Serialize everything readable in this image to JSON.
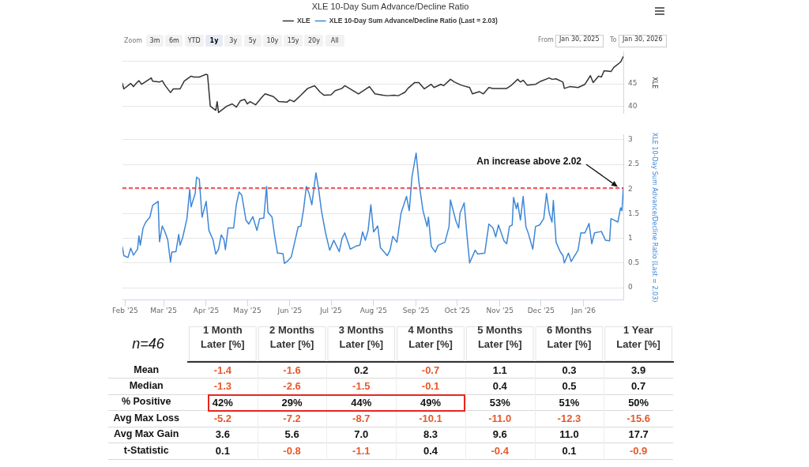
{
  "chart_data": [
    {
      "type": "line",
      "title": "XLE 10-Day Sum Advance/Decline Ratio",
      "ylabel": "XLE",
      "legend": "top",
      "grid": "y",
      "marker": "none",
      "line_style": "solid",
      "tick_labels": "y",
      "xlim": [
        "2025-01-30",
        "2026-01-30"
      ],
      "ylim": [
        38.5,
        52
      ],
      "yticks": [
        40,
        45,
        {
          "value": 50,
          "label": null
        }
      ],
      "annotations": [
        "Zoom",
        "3m",
        "6m",
        "YTD",
        "1y",
        "3y",
        "5y",
        "10y",
        "15y",
        "20y",
        "All",
        "From",
        "Jan 30, 2025",
        "To",
        "Jan 30, 2026"
      ],
      "series": [
        {
          "name": "XLE",
          "color": "#333333",
          "x": [
            "2025-01-30",
            "2025-01-31",
            "2025-02-05",
            "2025-02-07",
            "2025-02-09",
            "2025-02-11",
            "2025-02-13",
            "2025-02-20",
            "2025-02-21",
            "2025-02-26",
            "2025-02-28",
            "2025-03-02",
            "2025-03-06",
            "2025-03-08",
            "2025-03-13",
            "2025-03-16",
            "2025-03-21",
            "2025-03-23",
            "2025-03-27",
            "2025-04-01",
            "2025-04-02",
            "2025-04-04",
            "2025-04-08",
            "2025-04-09",
            "2025-04-10",
            "2025-04-16",
            "2025-04-20",
            "2025-04-23",
            "2025-04-26",
            "2025-04-29",
            "2025-05-01",
            "2025-05-03",
            "2025-05-07",
            "2025-05-12",
            "2025-05-14",
            "2025-05-20",
            "2025-05-24",
            "2025-05-30",
            "2025-06-01",
            "2025-06-04",
            "2025-06-09",
            "2025-06-14",
            "2025-06-19",
            "2025-06-23",
            "2025-06-26",
            "2025-07-01",
            "2025-07-04",
            "2025-07-09",
            "2025-07-11",
            "2025-07-16",
            "2025-07-21",
            "2025-07-29",
            "2025-08-02",
            "2025-08-08",
            "2025-08-11",
            "2025-08-16",
            "2025-08-19",
            "2025-08-24",
            "2025-08-26",
            "2025-08-31",
            "2025-09-03",
            "2025-09-07",
            "2025-09-12",
            "2025-09-14",
            "2025-09-19",
            "2025-09-21",
            "2025-09-26",
            "2025-09-29",
            "2025-10-04",
            "2025-10-10",
            "2025-10-12",
            "2025-10-17",
            "2025-10-20",
            "2025-10-24",
            "2025-10-27",
            "2025-11-01",
            "2025-11-06",
            "2025-11-09",
            "2025-11-14",
            "2025-11-16",
            "2025-11-18",
            "2025-11-21",
            "2025-11-27",
            "2025-12-01",
            "2025-12-07",
            "2025-12-09",
            "2025-12-12",
            "2025-12-17",
            "2025-12-18",
            "2025-12-22",
            "2025-12-28",
            "2026-01-02",
            "2026-01-06",
            "2026-01-08",
            "2026-01-12",
            "2026-01-14",
            "2026-01-16",
            "2026-01-21",
            "2026-01-23",
            "2026-01-28",
            "2026-01-30"
          ],
          "values": [
            45.1,
            43.9,
            45.1,
            44.4,
            45.1,
            45.7,
            44.9,
            46.3,
            45.6,
            45.4,
            45.7,
            44.7,
            43.1,
            43.9,
            43.9,
            45.6,
            46.7,
            46.5,
            46.5,
            47.1,
            47.0,
            40.1,
            39.2,
            41.1,
            38.7,
            40.1,
            40.6,
            39.9,
            41.3,
            41.6,
            40.6,
            41.1,
            40.4,
            42.2,
            42.8,
            42.2,
            41.1,
            41.0,
            41.5,
            41.1,
            42.5,
            44.0,
            44.6,
            43.2,
            42.5,
            42.6,
            43.5,
            44.0,
            44.6,
            43.7,
            42.8,
            44.4,
            42.8,
            42.5,
            42.4,
            42.5,
            42.4,
            43.2,
            44.0,
            45.3,
            45.3,
            43.9,
            44.9,
            44.2,
            44.9,
            44.6,
            46.0,
            45.4,
            44.7,
            44.2,
            42.8,
            43.3,
            42.8,
            44.2,
            44.0,
            44.0,
            44.0,
            44.6,
            46.0,
            45.4,
            45.8,
            44.7,
            44.9,
            45.6,
            46.3,
            46.0,
            46.1,
            45.4,
            44.0,
            44.4,
            44.2,
            44.9,
            46.8,
            45.3,
            46.7,
            46.5,
            47.9,
            47.7,
            48.6,
            49.8,
            51.0
          ]
        }
      ]
    },
    {
      "type": "line",
      "ylabel": "XLE 10-Day Sum Advance/Decline Ratio (Last = 2.03)",
      "legend": "top",
      "grid": "y",
      "marker": "none",
      "line_style": "solid",
      "xlim": [
        "2025-01-30",
        "2026-01-30"
      ],
      "xticks": [
        {
          "value": "2025-02-01",
          "label": "Feb '25"
        },
        {
          "value": "2025-03-01",
          "label": "Mar '25"
        },
        {
          "value": "2025-04-01",
          "label": "Apr '25"
        },
        {
          "value": "2025-05-01",
          "label": "May '25"
        },
        {
          "value": "2025-06-01",
          "label": "Jun '25"
        },
        {
          "value": "2025-07-01",
          "label": "Jul '25"
        },
        {
          "value": "2025-08-01",
          "label": "Aug '25"
        },
        {
          "value": "2025-09-01",
          "label": "Sep '25"
        },
        {
          "value": "2025-10-01",
          "label": "Oct '25"
        },
        {
          "value": "2025-11-01",
          "label": "Nov '25"
        },
        {
          "value": "2025-12-01",
          "label": "Dec '25"
        },
        {
          "value": "2026-01-01",
          "label": "Jan '26"
        }
      ],
      "ylim": [
        -0.25,
        3.1
      ],
      "yticks": [
        0,
        0.5,
        1,
        1.5,
        2,
        2.5,
        3
      ],
      "ref_lines": [
        {
          "axis": "y",
          "value": 2.02,
          "color": "#e8262b",
          "line_style": "dashed"
        }
      ],
      "annotations": [
        {
          "text": "An increase above 2.02",
          "x": "2026-01-26",
          "y": 2.02
        }
      ],
      "series": [
        {
          "name": "XLE 10-Day Sum Advance/Decline Ratio (Last = 2.03)",
          "color": "#3d87d8",
          "x": [
            "2025-01-30",
            "2025-01-31",
            "2025-02-03",
            "2025-02-05",
            "2025-02-07",
            "2025-02-10",
            "2025-02-11",
            "2025-02-12",
            "2025-02-14",
            "2025-02-16",
            "2025-02-19",
            "2025-02-21",
            "2025-02-23",
            "2025-02-25",
            "2025-02-26",
            "2025-02-28",
            "2025-03-02",
            "2025-03-04",
            "2025-03-06",
            "2025-03-07",
            "2025-03-10",
            "2025-03-12",
            "2025-03-13",
            "2025-03-15",
            "2025-03-18",
            "2025-03-20",
            "2025-03-21",
            "2025-03-24",
            "2025-03-25",
            "2025-03-27",
            "2025-03-29",
            "2025-04-01",
            "2025-04-03",
            "2025-04-06",
            "2025-04-08",
            "2025-04-10",
            "2025-04-12",
            "2025-04-14",
            "2025-04-15",
            "2025-04-17",
            "2025-04-21",
            "2025-04-23",
            "2025-04-25",
            "2025-04-27",
            "2025-04-30",
            "2025-05-02",
            "2025-05-05",
            "2025-05-08",
            "2025-05-10",
            "2025-05-13",
            "2025-05-15",
            "2025-05-16",
            "2025-05-19",
            "2025-05-21",
            "2025-05-23",
            "2025-05-27",
            "2025-05-28",
            "2025-05-30",
            "2025-06-02",
            "2025-06-04",
            "2025-06-07",
            "2025-06-09",
            "2025-06-11",
            "2025-06-13",
            "2025-06-15",
            "2025-06-17",
            "2025-06-20",
            "2025-06-22",
            "2025-06-24",
            "2025-06-27",
            "2025-06-30",
            "2025-07-03",
            "2025-07-07",
            "2025-07-09",
            "2025-07-11",
            "2025-07-15",
            "2025-07-19",
            "2025-07-22",
            "2025-07-24",
            "2025-07-26",
            "2025-07-28",
            "2025-07-30",
            "2025-08-01",
            "2025-08-04",
            "2025-08-06",
            "2025-08-11",
            "2025-08-13",
            "2025-08-15",
            "2025-08-18",
            "2025-08-21",
            "2025-08-25",
            "2025-08-27",
            "2025-08-29",
            "2025-09-01",
            "2025-09-03",
            "2025-09-06",
            "2025-09-09",
            "2025-09-10",
            "2025-09-12",
            "2025-09-15",
            "2025-09-17",
            "2025-09-22",
            "2025-09-25",
            "2025-09-26",
            "2025-09-30",
            "2025-10-02",
            "2025-10-03",
            "2025-10-06",
            "2025-10-08",
            "2025-10-10",
            "2025-10-14",
            "2025-10-16",
            "2025-10-21",
            "2025-10-24",
            "2025-10-27",
            "2025-10-29",
            "2025-10-31",
            "2025-11-04",
            "2025-11-06",
            "2025-11-08",
            "2025-11-10",
            "2025-11-11",
            "2025-11-13",
            "2025-11-14",
            "2025-11-16",
            "2025-11-18",
            "2025-11-20",
            "2025-11-22",
            "2025-11-25",
            "2025-11-27",
            "2025-11-30",
            "2025-12-03",
            "2025-12-05",
            "2025-12-07",
            "2025-12-09",
            "2025-12-10",
            "2025-12-12",
            "2025-12-15",
            "2025-12-17",
            "2025-12-18",
            "2025-12-21",
            "2025-12-23",
            "2025-12-28",
            "2025-12-30",
            "2026-01-02",
            "2026-01-05",
            "2026-01-07",
            "2026-01-09",
            "2026-01-14",
            "2026-01-17",
            "2026-01-20",
            "2026-01-21",
            "2026-01-26",
            "2026-01-28",
            "2026-01-29",
            "2026-01-30"
          ],
          "values": [
            0.82,
            0.65,
            0.61,
            0.8,
            0.66,
            0.78,
            1.05,
            0.86,
            1.21,
            1.33,
            1.43,
            1.67,
            1.71,
            1.75,
            0.93,
            1.25,
            1.13,
            0.97,
            0.52,
            0.72,
            0.73,
            1.08,
            0.86,
            1.03,
            1.4,
            1.99,
            1.64,
            1.91,
            2.24,
            2.2,
            1.43,
            1.75,
            1.16,
            0.97,
            0.68,
            0.78,
            1.07,
            0.97,
            0.77,
            1.21,
            1.21,
            1.69,
            1.94,
            1.87,
            1.37,
            1.29,
            1.44,
            1.16,
            1.4,
            1.41,
            2.05,
            1.53,
            1.43,
            1.03,
            0.7,
            0.69,
            0.49,
            0.53,
            0.62,
            0.86,
            1.23,
            1.25,
            1.59,
            2.05,
            1.91,
            1.68,
            2.33,
            1.99,
            1.56,
            1.11,
            0.76,
            0.96,
            0.73,
            1.0,
            1.11,
            0.78,
            0.84,
            0.86,
            1.13,
            0.96,
            1.16,
            1.68,
            1.13,
            1.25,
            0.81,
            0.65,
            0.76,
            1.04,
            0.92,
            1.51,
            1.85,
            1.56,
            2.25,
            2.73,
            2.15,
            1.56,
            1.24,
            1.43,
            0.84,
            0.72,
            0.86,
            0.92,
            1.24,
            1.78,
            1.35,
            1.21,
            1.51,
            1.72,
            1.08,
            0.5,
            0.76,
            0.68,
            0.7,
            1.29,
            1.21,
            1.03,
            1.27,
            0.95,
            0.89,
            1.24,
            1.27,
            1.83,
            1.6,
            1.72,
            1.37,
            1.85,
            1.24,
            1.08,
            0.78,
            1.24,
            1.27,
            1.4,
            1.91,
            1.51,
            1.33,
            1.77,
            0.92,
            0.73,
            0.65,
            0.5,
            0.7,
            0.53,
            0.76,
            1.11,
            1.11,
            1.3,
            0.89,
            1.11,
            1.14,
            0.96,
            0.95,
            1.4,
            1.33,
            1.62,
            1.56,
            2.03
          ]
        }
      ]
    },
    {
      "type": "heatmap",
      "title": "n=46",
      "categories": [
        "1 Month Later [%]",
        "2 Months Later [%]",
        "3 Months Later [%]",
        "4 Months Later [%]",
        "5 Months Later [%]",
        "6 Months Later [%]",
        "1 Year Later [%]"
      ],
      "y_categories": [
        "Mean",
        "Median",
        "% Positive",
        "Avg Max Loss",
        "Avg Max Gain",
        "t-Statistic"
      ],
      "cells": [
        [
          -1.4,
          -1.6,
          0.2,
          -0.7,
          1.1,
          0.3,
          3.9
        ],
        [
          -1.3,
          -2.6,
          -1.5,
          -0.1,
          0.4,
          0.5,
          0.7
        ],
        [
          42,
          29,
          44,
          49,
          53,
          51,
          50
        ],
        [
          -5.2,
          -7.2,
          -8.7,
          -10.1,
          -11.0,
          -12.3,
          -15.6
        ],
        [
          3.6,
          5.6,
          7.0,
          8.3,
          9.6,
          11.0,
          17.7
        ],
        [
          0.1,
          -0.8,
          -1.1,
          0.4,
          -0.4,
          0.1,
          -0.9
        ]
      ],
      "cell_labels": [
        [
          "-1.4",
          "-1.6",
          "0.2",
          "-0.7",
          "1.1",
          "0.3",
          "3.9"
        ],
        [
          "-1.3",
          "-2.6",
          "-1.5",
          "-0.1",
          "0.4",
          "0.5",
          "0.7"
        ],
        [
          "42%",
          "29%",
          "44%",
          "49%",
          "53%",
          "51%",
          "50%"
        ],
        [
          "-5.2",
          "-7.2",
          "-8.7",
          "-10.1",
          "-11.0",
          "-12.3",
          "-15.6"
        ],
        [
          "3.6",
          "5.6",
          "7.0",
          "8.3",
          "9.6",
          "11.0",
          "17.7"
        ],
        [
          "0.1",
          "-0.8",
          "-1.1",
          "0.4",
          "-0.4",
          "0.1",
          "-0.9"
        ]
      ]
    }
  ]
}
